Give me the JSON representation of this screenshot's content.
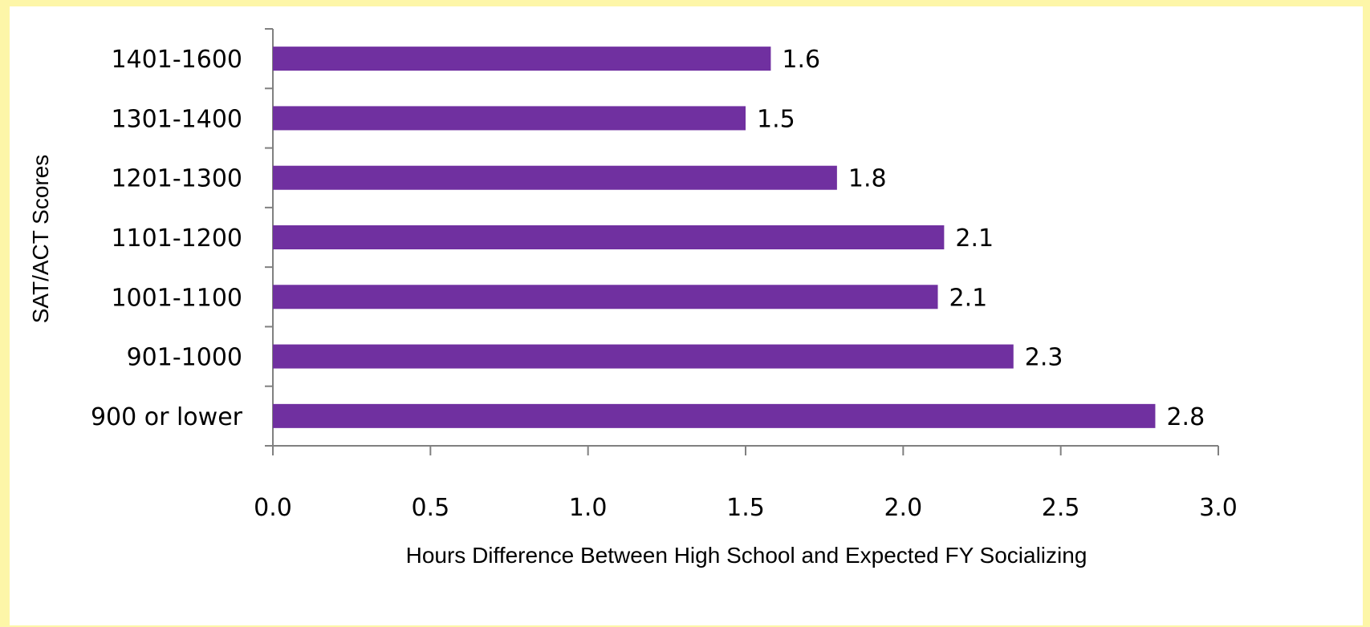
{
  "chart_data": {
    "type": "bar",
    "orientation": "horizontal",
    "categories": [
      "1401-1600",
      "1301-1400",
      "1201-1300",
      "1101-1200",
      "1001-1100",
      "901-1000",
      "900 or lower"
    ],
    "values": [
      1.58,
      1.5,
      1.79,
      2.13,
      2.11,
      2.35,
      2.8
    ],
    "data_labels": [
      "1.6",
      "1.5",
      "1.8",
      "2.1",
      "2.1",
      "2.3",
      "2.8"
    ],
    "xlabel": "Hours Difference Between High School and Expected FY Socializing",
    "ylabel": "SAT/ACT Scores",
    "xlim": [
      0,
      3
    ],
    "xticks": [
      "0.0",
      "0.5",
      "1.0",
      "1.5",
      "2.0",
      "2.5",
      "3.0"
    ],
    "bar_color": "#7030a0",
    "grid": false,
    "legend": "none"
  }
}
